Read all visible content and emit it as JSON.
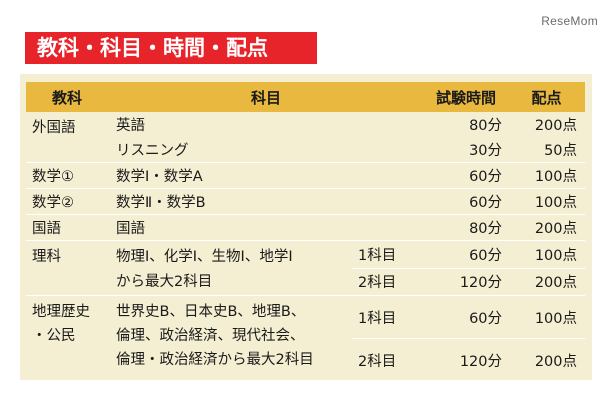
{
  "watermark": "ReseMom",
  "title": "教科・科目・時間・配点",
  "headers": {
    "subject": "教科",
    "course": "科目",
    "time": "試験時間",
    "points": "配点"
  },
  "rows": {
    "foreign": {
      "subject": "外国語",
      "r1": {
        "course": "英語",
        "time": "80分",
        "points": "200点"
      },
      "r2": {
        "course": "リスニング",
        "time": "30分",
        "points": "50点"
      }
    },
    "math1": {
      "subject": "数学①",
      "course": "数学Ⅰ・数学A",
      "time": "60分",
      "points": "100点"
    },
    "math2": {
      "subject": "数学②",
      "course": "数学Ⅱ・数学B",
      "time": "60分",
      "points": "100点"
    },
    "japanese": {
      "subject": "国語",
      "course": "国語",
      "time": "80分",
      "points": "200点"
    },
    "science": {
      "subject": "理科",
      "course_line1": "物理Ⅰ、化学Ⅰ、生物Ⅰ、地学Ⅰ",
      "course_line2": "から最大2科目",
      "r1": {
        "count": "1科目",
        "time": "60分",
        "points": "100点"
      },
      "r2": {
        "count": "2科目",
        "time": "120分",
        "points": "200点"
      }
    },
    "social": {
      "subject_line1": "地理歴史",
      "subject_line2": "・公民",
      "course_line1": "世界史B、日本史B、地理B、",
      "course_line2": "倫理、政治経済、現代社会、",
      "course_line3": "倫理・政治経済から最大2科目",
      "r1": {
        "count": "1科目",
        "time": "60分",
        "points": "100点"
      },
      "r2": {
        "count": "2科目",
        "time": "120分",
        "points": "200点"
      }
    }
  }
}
